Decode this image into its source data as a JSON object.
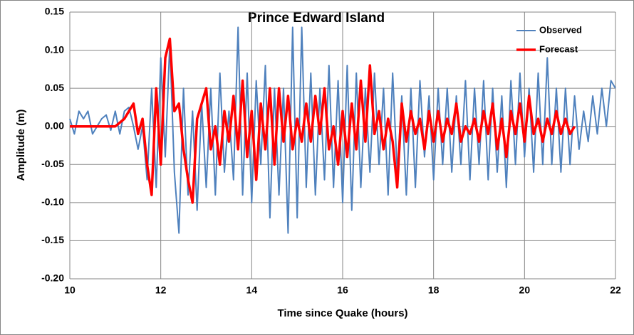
{
  "chart_data": {
    "type": "line",
    "title": "Prince Edward Island",
    "xlabel": "Time since Quake (hours)",
    "ylabel": "Amplitude (m)",
    "xlim": [
      10,
      22
    ],
    "xticks": [
      10,
      12,
      14,
      16,
      18,
      20,
      22
    ],
    "ylim": [
      -0.2,
      0.15
    ],
    "yticks": [
      {
        "value": -0.2,
        "label": "-0.20"
      },
      {
        "value": -0.15,
        "label": "-0.15"
      },
      {
        "value": -0.1,
        "label": "-0.10"
      },
      {
        "value": -0.05,
        "label": "-0.05"
      },
      {
        "value": 0,
        "label": "0.00"
      },
      {
        "value": 0.05,
        "label": "0.05"
      },
      {
        "value": 0.1,
        "label": "0.10"
      },
      {
        "value": 0.15,
        "label": "0.15"
      }
    ],
    "grid": true,
    "legend": "upper right",
    "x": [
      10,
      10.1,
      10.2,
      10.3,
      10.4,
      10.5,
      10.6,
      10.7,
      10.8,
      10.9,
      11,
      11.1,
      11.2,
      11.3,
      11.4,
      11.5,
      11.6,
      11.7,
      11.8,
      11.9,
      12,
      12.1,
      12.2,
      12.3,
      12.4,
      12.5,
      12.6,
      12.7,
      12.8,
      12.9,
      13,
      13.1,
      13.2,
      13.3,
      13.4,
      13.5,
      13.6,
      13.7,
      13.8,
      13.9,
      14,
      14.1,
      14.2,
      14.3,
      14.4,
      14.5,
      14.6,
      14.7,
      14.8,
      14.9,
      15,
      15.1,
      15.2,
      15.3,
      15.4,
      15.5,
      15.6,
      15.7,
      15.8,
      15.9,
      16,
      16.1,
      16.2,
      16.3,
      16.4,
      16.5,
      16.6,
      16.7,
      16.8,
      16.9,
      17,
      17.1,
      17.2,
      17.3,
      17.4,
      17.5,
      17.6,
      17.7,
      17.8,
      17.9,
      18,
      18.1,
      18.2,
      18.3,
      18.4,
      18.5,
      18.6,
      18.7,
      18.8,
      18.9,
      19,
      19.1,
      19.2,
      19.3,
      19.4,
      19.5,
      19.6,
      19.7,
      19.8,
      19.9,
      20,
      20.1,
      20.2,
      20.3,
      20.4,
      20.5,
      20.6,
      20.7,
      20.8,
      20.9,
      21,
      21.1,
      21.2,
      21.3,
      21.4,
      21.5,
      21.6,
      21.7,
      21.8,
      21.9,
      22
    ],
    "series": [
      {
        "name": "Observed",
        "color": "#4f81bd",
        "width": 2,
        "values": [
          0.01,
          -0.01,
          0.02,
          0.01,
          0.02,
          -0.01,
          0,
          0.01,
          0.015,
          -0.005,
          0.02,
          -0.01,
          0.02,
          0.025,
          0,
          -0.03,
          0,
          -0.07,
          0.05,
          -0.08,
          0.09,
          -0.04,
          0.11,
          -0.06,
          -0.14,
          0.05,
          -0.09,
          0.02,
          -0.11,
          0.03,
          -0.08,
          0.05,
          -0.09,
          0.07,
          -0.06,
          0.02,
          -0.07,
          0.13,
          -0.09,
          0.07,
          -0.1,
          0.06,
          -0.05,
          0.08,
          -0.12,
          0.05,
          -0.09,
          0.05,
          -0.14,
          0.13,
          -0.12,
          0.13,
          -0.08,
          0.07,
          -0.09,
          0.05,
          -0.07,
          0.08,
          -0.08,
          0.06,
          -0.1,
          0.08,
          -0.11,
          0.07,
          -0.08,
          0.05,
          -0.06,
          0.07,
          -0.05,
          0.05,
          -0.09,
          0.07,
          -0.06,
          0.04,
          -0.09,
          0.05,
          -0.08,
          0.06,
          -0.04,
          0.04,
          -0.07,
          0.05,
          -0.05,
          0.05,
          -0.06,
          0.04,
          -0.05,
          0.06,
          -0.07,
          0.05,
          -0.05,
          0.06,
          -0.07,
          0.05,
          -0.06,
          0.04,
          -0.08,
          0.06,
          -0.05,
          0.07,
          -0.04,
          0.05,
          -0.06,
          0.07,
          -0.05,
          0.09,
          -0.05,
          0.05,
          -0.06,
          0.05,
          -0.05,
          0.04,
          -0.03,
          0.02,
          -0.02,
          0.04,
          -0.01,
          0.05,
          0,
          0.06,
          0.05
        ]
      },
      {
        "name": "Forecast",
        "color": "#ff0000",
        "width": 3.5,
        "values": [
          0,
          0,
          0,
          0,
          0,
          0,
          0,
          0,
          0,
          0,
          0,
          0.005,
          0.01,
          0.02,
          0.03,
          -0.01,
          0.01,
          -0.05,
          -0.09,
          0.05,
          -0.05,
          0.09,
          0.115,
          0.02,
          0.03,
          -0.03,
          -0.07,
          -0.1,
          0.01,
          0.03,
          0.05,
          -0.03,
          0,
          -0.05,
          0.02,
          -0.02,
          0.04,
          -0.03,
          0.06,
          -0.04,
          0.02,
          -0.07,
          0.03,
          -0.03,
          0.05,
          -0.05,
          0.05,
          -0.02,
          0.04,
          -0.03,
          0.01,
          -0.02,
          0.03,
          -0.02,
          0.04,
          -0.01,
          0.05,
          -0.03,
          0,
          -0.05,
          0.02,
          -0.04,
          0.03,
          -0.03,
          0.06,
          -0.02,
          0.08,
          -0.01,
          0.02,
          -0.03,
          0.01,
          -0.02,
          -0.08,
          0.03,
          -0.02,
          0.02,
          -0.01,
          0.01,
          -0.03,
          0.02,
          -0.02,
          0.02,
          -0.02,
          0.01,
          -0.01,
          0.03,
          -0.02,
          0,
          -0.01,
          0.01,
          -0.02,
          0.02,
          -0.01,
          0.03,
          -0.03,
          0.01,
          -0.04,
          0.02,
          -0.01,
          0.03,
          -0.02,
          0.04,
          -0.01,
          0.01,
          -0.02,
          0.01,
          -0.01,
          0.02,
          -0.01,
          0.01,
          -0.01,
          0,
          null,
          null,
          null,
          null,
          null,
          null,
          null,
          null,
          null
        ]
      }
    ]
  }
}
